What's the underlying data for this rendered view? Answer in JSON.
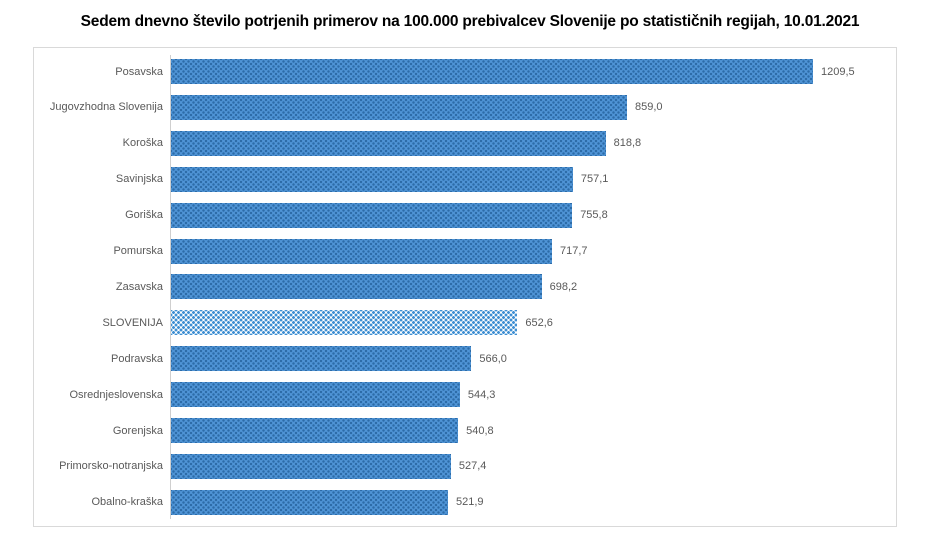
{
  "title": "Sedem dnevno število potrjenih primerov na 100.000  prebivalcev Slovenije po statističnih regijah, 10.01.2021",
  "colors": {
    "bar_base": "#4f94d6",
    "bar_dot": "#2d6ca8",
    "highlight_base": "#ffffff",
    "highlight_dot": "#3f8fd2",
    "label_text": "#595959",
    "frame_border": "#d9d9d9",
    "axis_line": "#cfcfcf",
    "title_text": "#000000"
  },
  "chart_data": {
    "type": "bar",
    "orientation": "horizontal",
    "title": "Sedem dnevno število potrjenih primerov na 100.000  prebivalcev Slovenije po statističnih regijah, 10.01.2021",
    "xlabel": "",
    "ylabel": "",
    "xlim": [
      0,
      1209.5
    ],
    "grid": false,
    "legend": false,
    "data_labels": true,
    "highlight_category": "SLOVENIJA",
    "categories": [
      "Posavska",
      "Jugovzhodna Slovenija",
      "Koroška",
      "Savinjska",
      "Goriška",
      "Pomurska",
      "Zasavska",
      "SLOVENIJA",
      "Podravska",
      "Osrednjeslovenska",
      "Gorenjska",
      "Primorsko-notranjska",
      "Obalno-kraška"
    ],
    "values": [
      1209.5,
      859.0,
      818.8,
      757.1,
      755.8,
      717.7,
      698.2,
      652.6,
      566.0,
      544.3,
      540.8,
      527.4,
      521.9
    ],
    "value_labels": [
      "1209,5",
      "859,0",
      "818,8",
      "757,1",
      "755,8",
      "717,7",
      "698,2",
      "652,6",
      "566,0",
      "544,3",
      "540,8",
      "527,4",
      "521,9"
    ]
  }
}
